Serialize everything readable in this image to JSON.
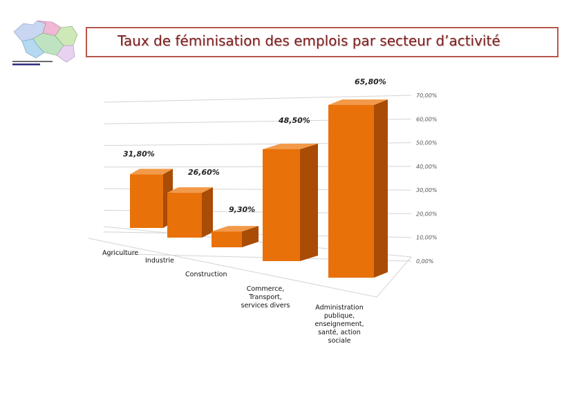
{
  "header": {
    "title": "Taux de féminisation des emplois par  secteur d’activité",
    "logo_icon": "region-map-logo"
  },
  "colors": {
    "bar_front": "#e8710a",
    "bar_side": "#a94c05",
    "bar_top": "#f29a4a",
    "title_border": "#b5574b",
    "title_text": "#7a1f1f"
  },
  "chart_data": {
    "type": "bar",
    "style": "3d",
    "categories": [
      "Agriculture",
      "Industrie",
      "Construction",
      "Commerce, Transport, services divers",
      "Administration publique, enseignement, santé, action sociale"
    ],
    "category_lines": [
      [
        "Agriculture"
      ],
      [
        "Industrie"
      ],
      [
        "Construction"
      ],
      [
        "Commerce,",
        "Transport,",
        "services divers"
      ],
      [
        "Administration",
        "publique,",
        "enseignement,",
        "santé, action",
        "sociale"
      ]
    ],
    "values": [
      31.8,
      26.6,
      9.3,
      48.5,
      65.8
    ],
    "value_labels": [
      "31,80%",
      "26,60%",
      "9,30%",
      "48,50%",
      "65,80%"
    ],
    "yticks": [
      "0,00%",
      "10,00%",
      "20,00%",
      "30,00%",
      "40,00%",
      "50,00%",
      "60,00%",
      "70,00%"
    ],
    "ylim": [
      0,
      70
    ],
    "grid": true,
    "legend": "none"
  }
}
